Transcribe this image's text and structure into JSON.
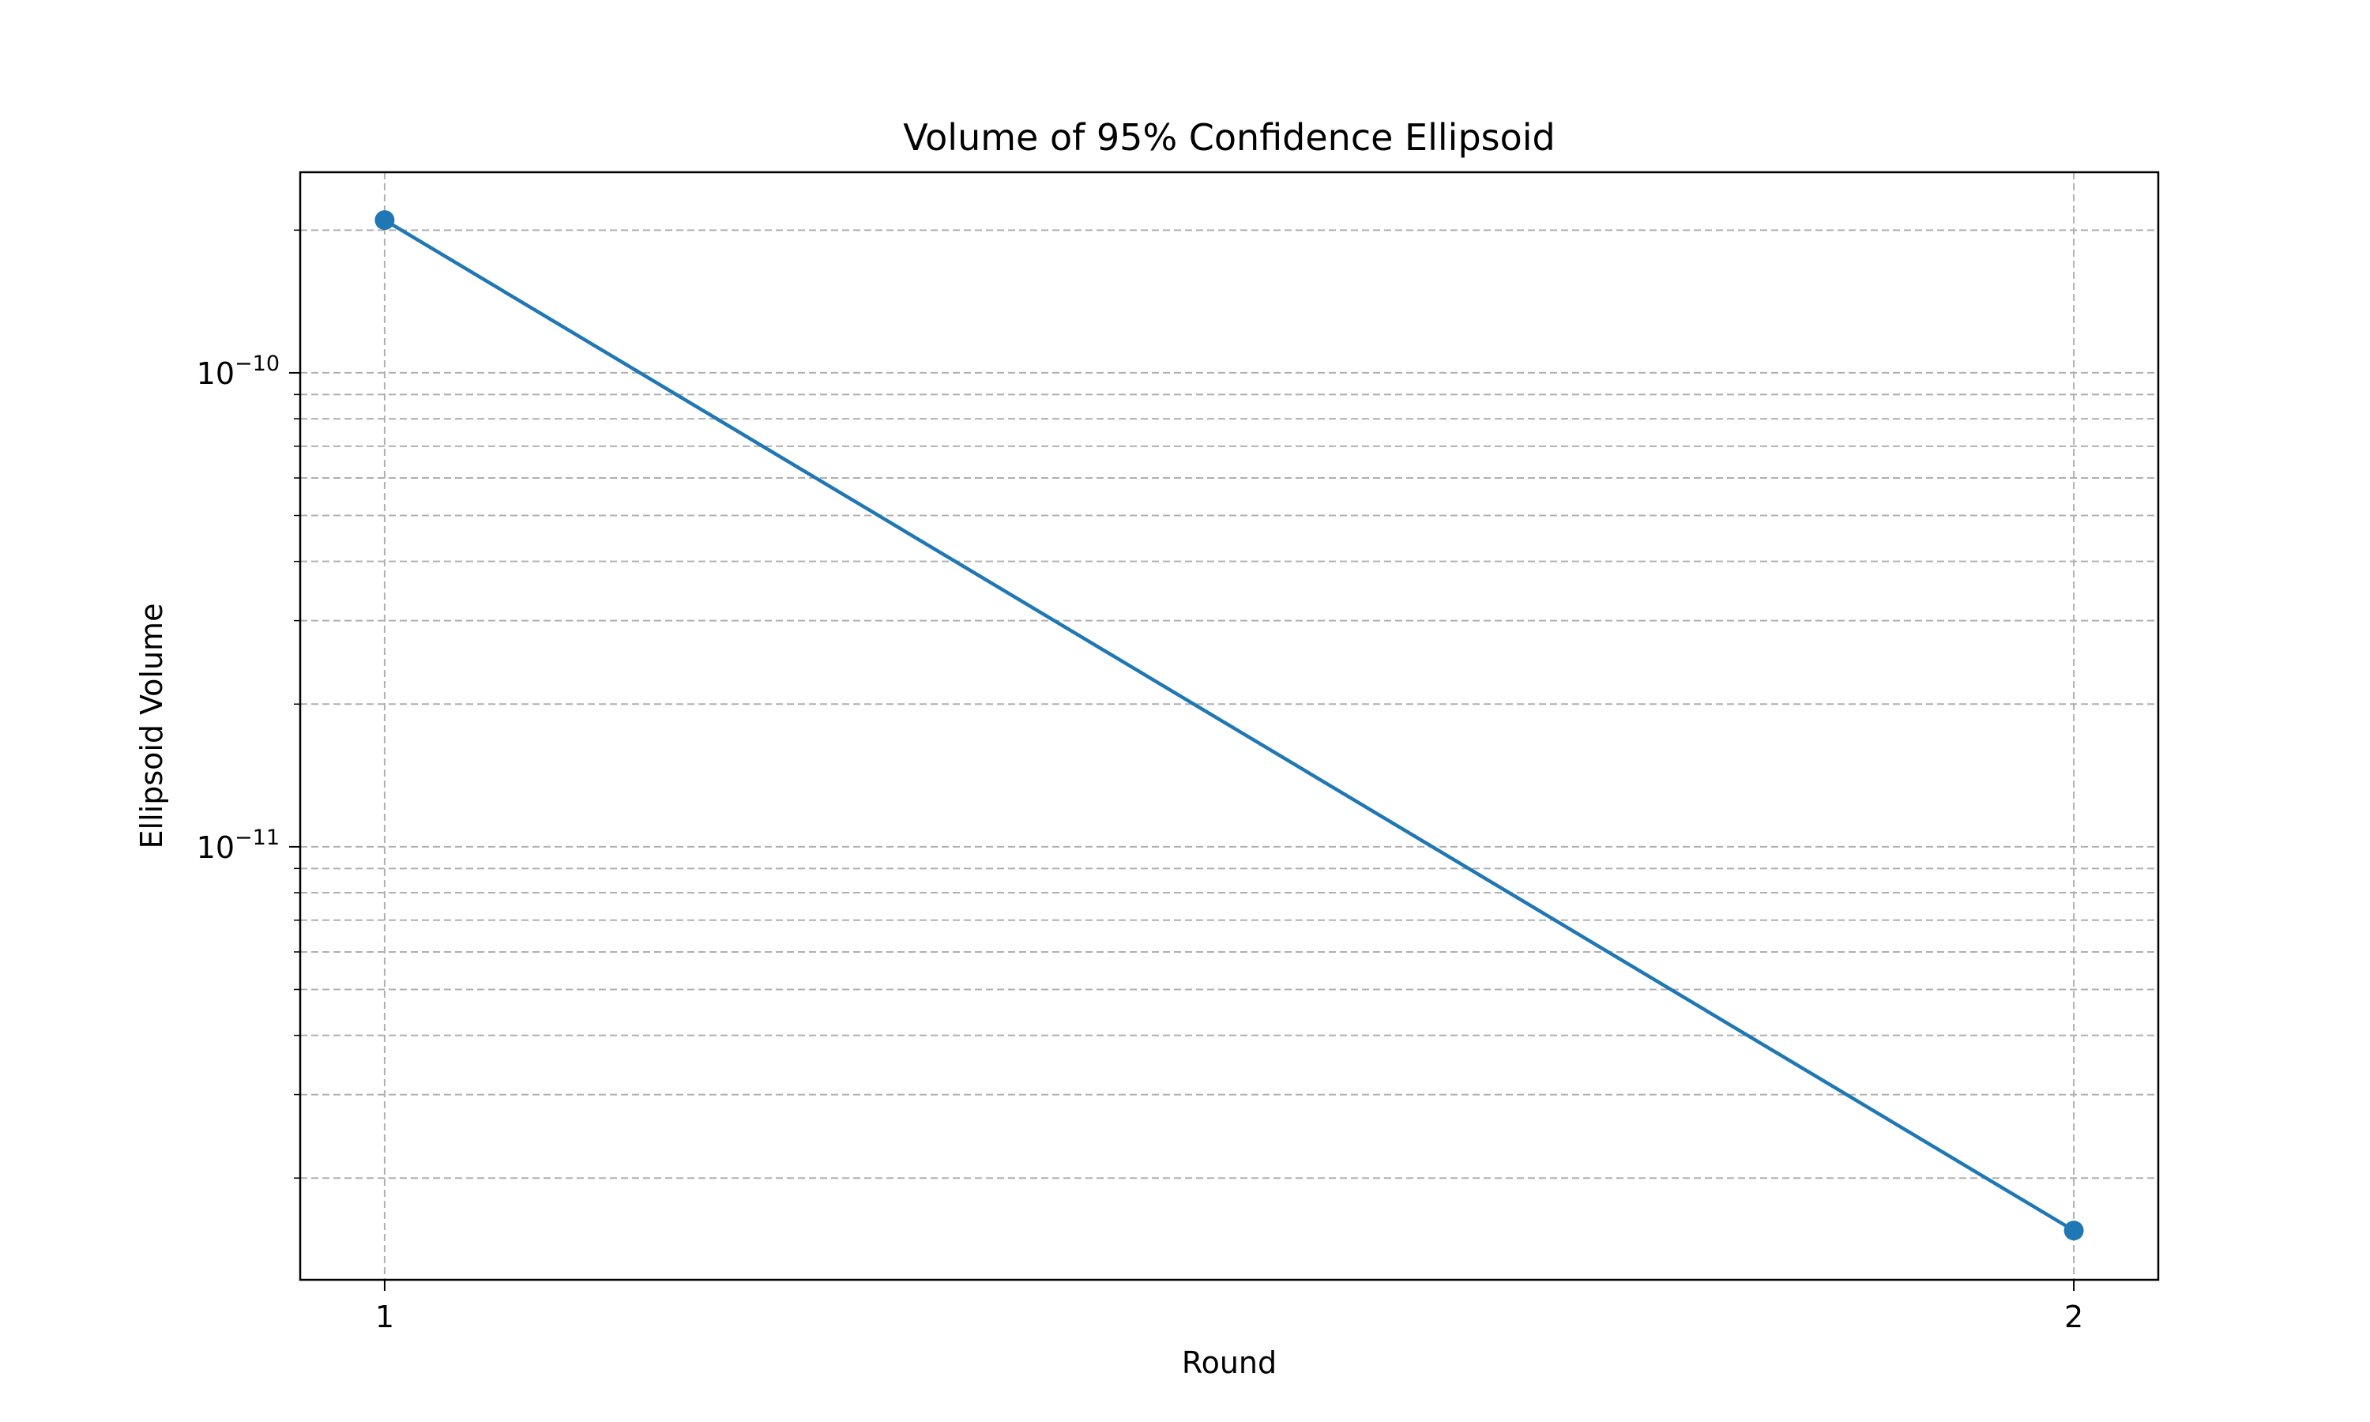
{
  "chart_data": {
    "type": "line",
    "title": "Volume of 95% Confidence Ellipsoid",
    "xlabel": "Round",
    "ylabel": "Ellipsoid Volume",
    "x": [
      1,
      2
    ],
    "series": [
      {
        "values": [
          2.1e-10,
          1.55e-12
        ]
      }
    ],
    "xticks": [
      {
        "value": 1,
        "label": "1"
      },
      {
        "value": 2,
        "label": "2"
      }
    ],
    "yticks": [
      {
        "value": 1e-10,
        "base": "10",
        "exponent": "−10"
      },
      {
        "value": 1e-11,
        "base": "10",
        "exponent": "−11"
      }
    ],
    "xlim": [
      0.95,
      2.05
    ],
    "ylim": [
      1.22e-12,
      2.65e-10
    ],
    "yscale": "log",
    "grid": true,
    "colors": {
      "line": "#1f77b4",
      "grid": "#b0b0b0",
      "axes": "#000000"
    }
  }
}
